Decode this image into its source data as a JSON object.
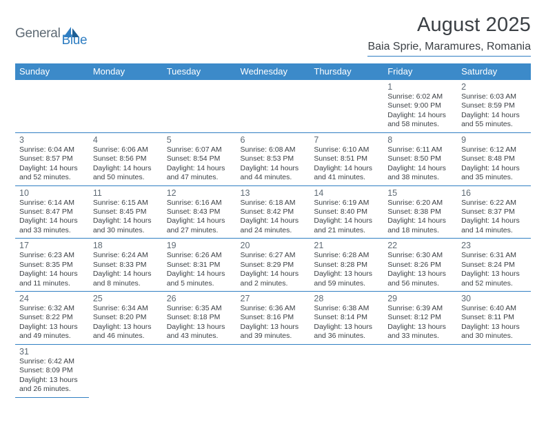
{
  "logo": {
    "part1": "General",
    "part2": "Blue"
  },
  "title": "August 2025",
  "location": "Baia Sprie, Maramures, Romania",
  "colors": {
    "header_bg": "#3c8ac9",
    "header_text": "#ffffff",
    "accent_line": "#2f7ec2",
    "body_text": "#3a3f44",
    "muted_text": "#5e6a74",
    "background": "#ffffff"
  },
  "dayHeaders": [
    "Sunday",
    "Monday",
    "Tuesday",
    "Wednesday",
    "Thursday",
    "Friday",
    "Saturday"
  ],
  "weeks": [
    [
      null,
      null,
      null,
      null,
      null,
      {
        "n": "1",
        "sr": "6:02 AM",
        "ss": "9:00 PM",
        "dl": "14 hours and 58 minutes."
      },
      {
        "n": "2",
        "sr": "6:03 AM",
        "ss": "8:59 PM",
        "dl": "14 hours and 55 minutes."
      }
    ],
    [
      {
        "n": "3",
        "sr": "6:04 AM",
        "ss": "8:57 PM",
        "dl": "14 hours and 52 minutes."
      },
      {
        "n": "4",
        "sr": "6:06 AM",
        "ss": "8:56 PM",
        "dl": "14 hours and 50 minutes."
      },
      {
        "n": "5",
        "sr": "6:07 AM",
        "ss": "8:54 PM",
        "dl": "14 hours and 47 minutes."
      },
      {
        "n": "6",
        "sr": "6:08 AM",
        "ss": "8:53 PM",
        "dl": "14 hours and 44 minutes."
      },
      {
        "n": "7",
        "sr": "6:10 AM",
        "ss": "8:51 PM",
        "dl": "14 hours and 41 minutes."
      },
      {
        "n": "8",
        "sr": "6:11 AM",
        "ss": "8:50 PM",
        "dl": "14 hours and 38 minutes."
      },
      {
        "n": "9",
        "sr": "6:12 AM",
        "ss": "8:48 PM",
        "dl": "14 hours and 35 minutes."
      }
    ],
    [
      {
        "n": "10",
        "sr": "6:14 AM",
        "ss": "8:47 PM",
        "dl": "14 hours and 33 minutes."
      },
      {
        "n": "11",
        "sr": "6:15 AM",
        "ss": "8:45 PM",
        "dl": "14 hours and 30 minutes."
      },
      {
        "n": "12",
        "sr": "6:16 AM",
        "ss": "8:43 PM",
        "dl": "14 hours and 27 minutes."
      },
      {
        "n": "13",
        "sr": "6:18 AM",
        "ss": "8:42 PM",
        "dl": "14 hours and 24 minutes."
      },
      {
        "n": "14",
        "sr": "6:19 AM",
        "ss": "8:40 PM",
        "dl": "14 hours and 21 minutes."
      },
      {
        "n": "15",
        "sr": "6:20 AM",
        "ss": "8:38 PM",
        "dl": "14 hours and 18 minutes."
      },
      {
        "n": "16",
        "sr": "6:22 AM",
        "ss": "8:37 PM",
        "dl": "14 hours and 14 minutes."
      }
    ],
    [
      {
        "n": "17",
        "sr": "6:23 AM",
        "ss": "8:35 PM",
        "dl": "14 hours and 11 minutes."
      },
      {
        "n": "18",
        "sr": "6:24 AM",
        "ss": "8:33 PM",
        "dl": "14 hours and 8 minutes."
      },
      {
        "n": "19",
        "sr": "6:26 AM",
        "ss": "8:31 PM",
        "dl": "14 hours and 5 minutes."
      },
      {
        "n": "20",
        "sr": "6:27 AM",
        "ss": "8:29 PM",
        "dl": "14 hours and 2 minutes."
      },
      {
        "n": "21",
        "sr": "6:28 AM",
        "ss": "8:28 PM",
        "dl": "13 hours and 59 minutes."
      },
      {
        "n": "22",
        "sr": "6:30 AM",
        "ss": "8:26 PM",
        "dl": "13 hours and 56 minutes."
      },
      {
        "n": "23",
        "sr": "6:31 AM",
        "ss": "8:24 PM",
        "dl": "13 hours and 52 minutes."
      }
    ],
    [
      {
        "n": "24",
        "sr": "6:32 AM",
        "ss": "8:22 PM",
        "dl": "13 hours and 49 minutes."
      },
      {
        "n": "25",
        "sr": "6:34 AM",
        "ss": "8:20 PM",
        "dl": "13 hours and 46 minutes."
      },
      {
        "n": "26",
        "sr": "6:35 AM",
        "ss": "8:18 PM",
        "dl": "13 hours and 43 minutes."
      },
      {
        "n": "27",
        "sr": "6:36 AM",
        "ss": "8:16 PM",
        "dl": "13 hours and 39 minutes."
      },
      {
        "n": "28",
        "sr": "6:38 AM",
        "ss": "8:14 PM",
        "dl": "13 hours and 36 minutes."
      },
      {
        "n": "29",
        "sr": "6:39 AM",
        "ss": "8:12 PM",
        "dl": "13 hours and 33 minutes."
      },
      {
        "n": "30",
        "sr": "6:40 AM",
        "ss": "8:11 PM",
        "dl": "13 hours and 30 minutes."
      }
    ],
    [
      {
        "n": "31",
        "sr": "6:42 AM",
        "ss": "8:09 PM",
        "dl": "13 hours and 26 minutes."
      },
      null,
      null,
      null,
      null,
      null,
      null
    ]
  ],
  "labels": {
    "sunrise": "Sunrise:",
    "sunset": "Sunset:",
    "daylight": "Daylight:"
  }
}
